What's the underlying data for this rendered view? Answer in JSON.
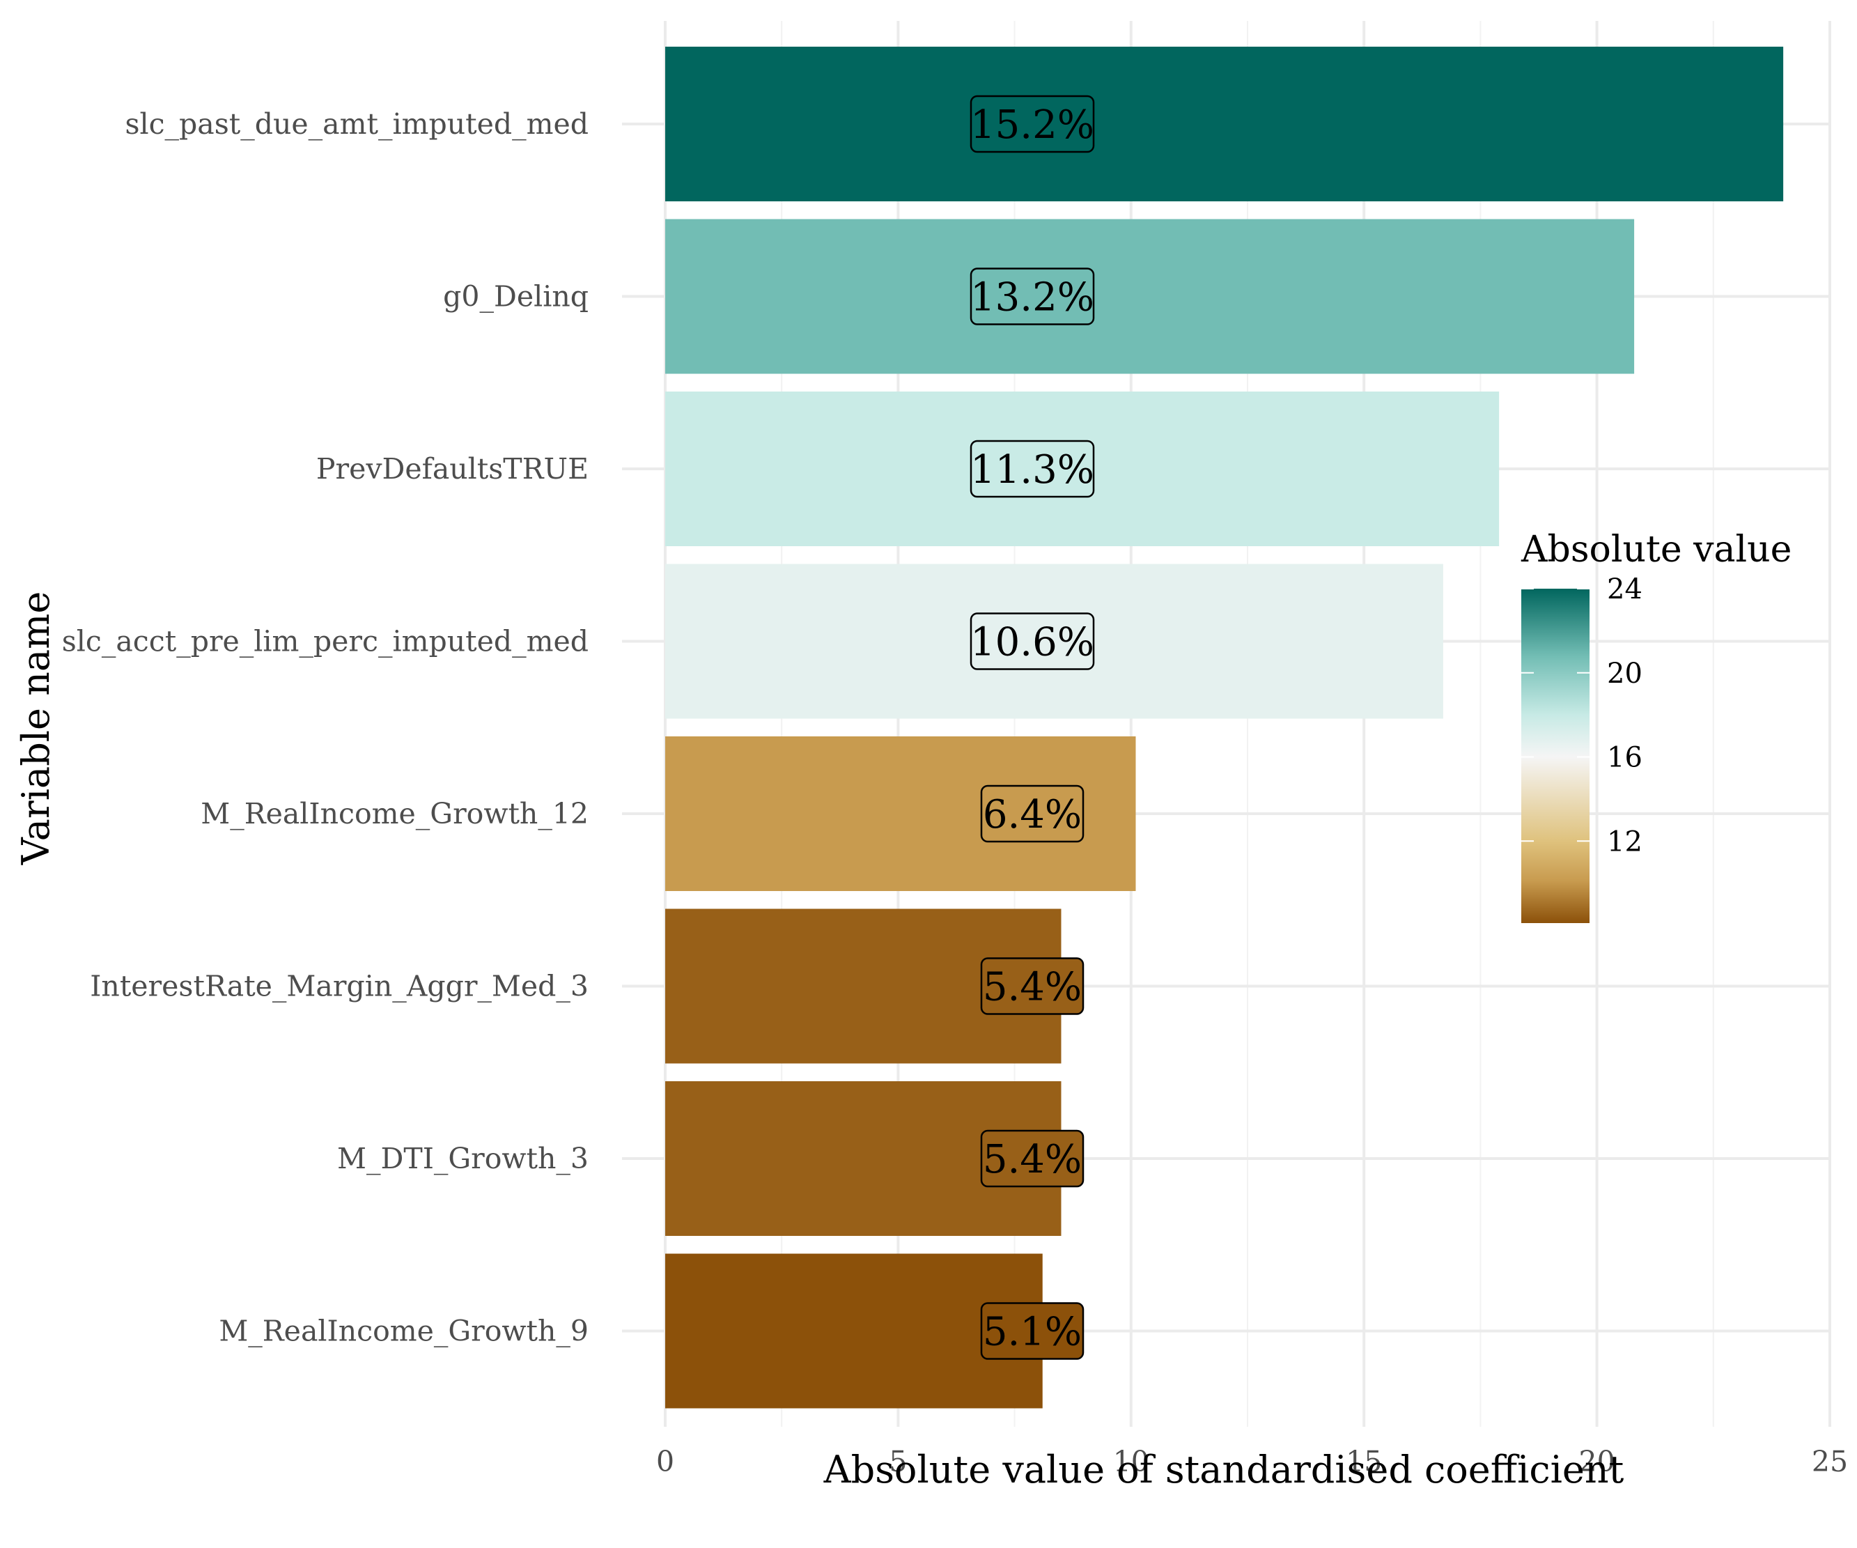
{
  "chart_data": {
    "type": "bar",
    "orientation": "horizontal",
    "categories": [
      "slc_past_due_amt_imputed_med",
      "g0_Delinq",
      "PrevDefaultsTRUE",
      "slc_acct_pre_lim_perc_imputed_med",
      "M_RealIncome_Growth_12",
      "InterestRate_Margin_Aggr_Med_3",
      "M_DTI_Growth_3",
      "M_RealIncome_Growth_9"
    ],
    "values": [
      24.0,
      20.8,
      17.9,
      16.7,
      10.1,
      8.5,
      8.5,
      8.1
    ],
    "data_labels": [
      "15.2%",
      "13.2%",
      "11.3%",
      "10.6%",
      "6.4%",
      "5.4%",
      "5.4%",
      "5.1%"
    ],
    "xlabel": "Absolute value of standardised coefficient",
    "ylabel": "Variable name",
    "xlim": [
      0,
      25
    ],
    "x_ticks": [
      0,
      5,
      10,
      15,
      20,
      25
    ],
    "x_tick_labels": [
      "0",
      "5",
      "10",
      "15",
      "20",
      "25"
    ],
    "grid": true,
    "color_scale": {
      "title": "Absolute value",
      "range": [
        8.1,
        24.0
      ],
      "ticks": [
        12,
        16,
        20,
        24
      ],
      "tick_labels": [
        "12",
        "16",
        "20",
        "24"
      ],
      "stops": [
        {
          "value": 8.1,
          "color": "#8c510a"
        },
        {
          "value": 10.1,
          "color": "#c89b4f"
        },
        {
          "value": 12.0,
          "color": "#dfc27d"
        },
        {
          "value": 16.0,
          "color": "#f5f5f5"
        },
        {
          "value": 18.0,
          "color": "#c7eae5"
        },
        {
          "value": 20.8,
          "color": "#72bdb4"
        },
        {
          "value": 24.0,
          "color": "#01665e"
        }
      ]
    },
    "legend_position": "right"
  }
}
